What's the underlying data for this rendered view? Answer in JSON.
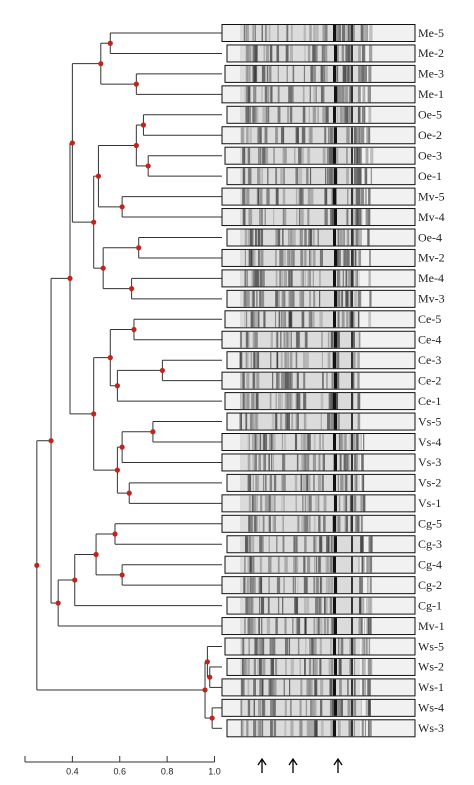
{
  "chart_data": {
    "type": "dendrogram",
    "xlim": [
      0.2,
      1.0
    ],
    "xticks": [
      0.4,
      0.6,
      0.8,
      {
        "value": 1,
        "label": "1.0"
      }
    ],
    "node_color": "#c0241c",
    "tree": {
      "height": 0.25,
      "children": [
        {
          "height": 0.31,
          "children": [
            {
              "height": 0.39,
              "children": [
                {
                  "height": 0.4,
                  "children": [
                    {
                      "height": 0.52,
                      "children": [
                        {
                          "height": 0.56,
                          "children": [
                            {
                              "label": "Me-5"
                            },
                            {
                              "label": "Me-2"
                            }
                          ]
                        },
                        {
                          "height": 0.67,
                          "children": [
                            {
                              "label": "Me-3"
                            },
                            {
                              "label": "Me-1"
                            }
                          ]
                        }
                      ]
                    },
                    {
                      "height": 0.49,
                      "children": [
                        {
                          "height": 0.51,
                          "children": [
                            {
                              "height": 0.67,
                              "children": [
                                {
                                  "height": 0.7,
                                  "children": [
                                    {
                                      "label": "Oe-5"
                                    },
                                    {
                                      "label": "Oe-2"
                                    }
                                  ]
                                },
                                {
                                  "height": 0.72,
                                  "children": [
                                    {
                                      "label": "Oe-3"
                                    },
                                    {
                                      "label": "Oe-1"
                                    }
                                  ]
                                }
                              ]
                            },
                            {
                              "height": 0.61,
                              "children": [
                                {
                                  "label": "Mv-5"
                                },
                                {
                                  "label": "Mv-4"
                                }
                              ]
                            }
                          ]
                        },
                        {
                          "height": 0.53,
                          "children": [
                            {
                              "height": 0.68,
                              "children": [
                                {
                                  "label": "Oe-4"
                                },
                                {
                                  "label": "Mv-2"
                                }
                              ]
                            },
                            {
                              "height": 0.65,
                              "children": [
                                {
                                  "label": "Me-4"
                                },
                                {
                                  "label": "Mv-3"
                                }
                              ]
                            }
                          ]
                        }
                      ]
                    }
                  ]
                },
                {
                  "height": 0.49,
                  "children": [
                    {
                      "height": 0.56,
                      "children": [
                        {
                          "height": 0.66,
                          "children": [
                            {
                              "label": "Ce-5"
                            },
                            {
                              "label": "Ce-4"
                            }
                          ]
                        },
                        {
                          "height": 0.59,
                          "children": [
                            {
                              "height": 0.78,
                              "children": [
                                {
                                  "label": "Ce-3"
                                },
                                {
                                  "label": "Ce-2"
                                }
                              ]
                            },
                            {
                              "label": "Ce-1"
                            }
                          ]
                        }
                      ]
                    },
                    {
                      "height": 0.59,
                      "children": [
                        {
                          "height": 0.61,
                          "children": [
                            {
                              "height": 0.74,
                              "children": [
                                {
                                  "label": "Vs-5"
                                },
                                {
                                  "label": "Vs-4"
                                }
                              ]
                            },
                            {
                              "label": "Vs-3"
                            }
                          ]
                        },
                        {
                          "height": 0.64,
                          "children": [
                            {
                              "label": "Vs-2"
                            },
                            {
                              "label": "Vs-1"
                            }
                          ]
                        }
                      ]
                    }
                  ]
                }
              ]
            },
            {
              "height": 0.34,
              "children": [
                {
                  "height": 0.41,
                  "children": [
                    {
                      "height": 0.5,
                      "children": [
                        {
                          "height": 0.58,
                          "children": [
                            {
                              "label": "Cg-5"
                            },
                            {
                              "label": "Cg-3"
                            }
                          ]
                        },
                        {
                          "height": 0.61,
                          "children": [
                            {
                              "label": "Cg-4"
                            },
                            {
                              "label": "Cg-2"
                            }
                          ]
                        }
                      ]
                    },
                    {
                      "label": "Cg-1"
                    }
                  ]
                },
                {
                  "label": "Mv-1"
                }
              ]
            }
          ]
        },
        {
          "height": 0.96,
          "children": [
            {
              "height": 0.97,
              "children": [
                {
                  "label": "Ws-5"
                },
                {
                  "height": 0.98,
                  "children": [
                    {
                      "label": "Ws-2"
                    },
                    {
                      "label": "Ws-1"
                    }
                  ]
                }
              ]
            },
            {
              "height": 0.99,
              "children": [
                {
                  "label": "Ws-4"
                },
                {
                  "label": "Ws-3"
                }
              ]
            }
          ]
        }
      ]
    }
  }
}
